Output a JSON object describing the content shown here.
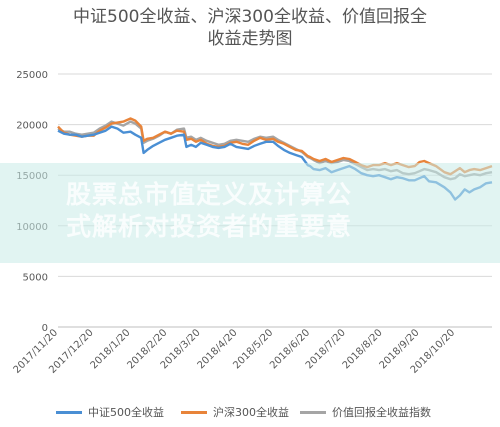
{
  "chart_data": {
    "type": "line",
    "title_line1": "中证500全收益、沪深300全收益、价值回报全",
    "title_line2": "收益走势图",
    "ylim": [
      0,
      25000
    ],
    "yticks": [
      "0",
      "5000",
      "10000",
      "15000",
      "20000",
      "25000"
    ],
    "ytick_values": [
      0,
      5000,
      10000,
      15000,
      20000,
      25000
    ],
    "x_labels": [
      "2017/11/20",
      "2017/12/20",
      "2018/1/20",
      "2018/2/20",
      "2018/3/20",
      "2018/4/20",
      "2018/5/20",
      "2018/6/20",
      "2018/7/20",
      "2018/8/20",
      "2018/9/20",
      "2018/10/20"
    ],
    "x_label_index": [
      0,
      30,
      61,
      92,
      120,
      151,
      181,
      212,
      242,
      273,
      304,
      334
    ],
    "x_total_days": 365,
    "grid": true,
    "legend_position": "bottom",
    "series": [
      {
        "name": "中证500全收益",
        "color": "#4a8fd4",
        "points": [
          [
            0,
            19400
          ],
          [
            5,
            19100
          ],
          [
            10,
            19000
          ],
          [
            15,
            19000
          ],
          [
            20,
            18800
          ],
          [
            25,
            18900
          ],
          [
            30,
            19000
          ],
          [
            35,
            19200
          ],
          [
            40,
            19400
          ],
          [
            45,
            19800
          ],
          [
            50,
            19600
          ],
          [
            55,
            19200
          ],
          [
            61,
            19300
          ],
          [
            65,
            19000
          ],
          [
            70,
            18700
          ],
          [
            72,
            17200
          ],
          [
            75,
            17500
          ],
          [
            80,
            17900
          ],
          [
            85,
            18200
          ],
          [
            90,
            18500
          ],
          [
            95,
            18700
          ],
          [
            100,
            18900
          ],
          [
            106,
            19000
          ],
          [
            108,
            17800
          ],
          [
            112,
            18000
          ],
          [
            116,
            17800
          ],
          [
            120,
            18200
          ],
          [
            125,
            18000
          ],
          [
            130,
            17800
          ],
          [
            135,
            17700
          ],
          [
            140,
            17800
          ],
          [
            145,
            18100
          ],
          [
            150,
            17800
          ],
          [
            155,
            17700
          ],
          [
            160,
            17600
          ],
          [
            165,
            17900
          ],
          [
            170,
            18100
          ],
          [
            175,
            18300
          ],
          [
            181,
            18300
          ],
          [
            185,
            17900
          ],
          [
            190,
            17500
          ],
          [
            195,
            17200
          ],
          [
            200,
            17000
          ],
          [
            205,
            16800
          ],
          [
            210,
            16000
          ],
          [
            212,
            15900
          ],
          [
            215,
            15600
          ],
          [
            220,
            15500
          ],
          [
            225,
            15700
          ],
          [
            230,
            15300
          ],
          [
            235,
            15500
          ],
          [
            240,
            15700
          ],
          [
            245,
            15900
          ],
          [
            250,
            15600
          ],
          [
            255,
            15200
          ],
          [
            260,
            15000
          ],
          [
            265,
            14900
          ],
          [
            270,
            15000
          ],
          [
            275,
            14800
          ],
          [
            280,
            14600
          ],
          [
            285,
            14800
          ],
          [
            290,
            14700
          ],
          [
            295,
            14500
          ],
          [
            300,
            14500
          ],
          [
            304,
            14700
          ],
          [
            308,
            14900
          ],
          [
            312,
            14400
          ],
          [
            318,
            14300
          ],
          [
            325,
            13800
          ],
          [
            330,
            13300
          ],
          [
            334,
            12600
          ],
          [
            338,
            13000
          ],
          [
            342,
            13600
          ],
          [
            346,
            13300
          ],
          [
            350,
            13600
          ],
          [
            355,
            13800
          ],
          [
            360,
            14200
          ],
          [
            365,
            14300
          ]
        ]
      },
      {
        "name": "沪深300全收益",
        "color": "#e8843a",
        "points": [
          [
            0,
            19800
          ],
          [
            5,
            19200
          ],
          [
            10,
            19000
          ],
          [
            15,
            18900
          ],
          [
            20,
            18800
          ],
          [
            25,
            18900
          ],
          [
            30,
            18900
          ],
          [
            35,
            19400
          ],
          [
            40,
            19700
          ],
          [
            45,
            20100
          ],
          [
            50,
            20200
          ],
          [
            55,
            20300
          ],
          [
            61,
            20600
          ],
          [
            65,
            20400
          ],
          [
            70,
            19800
          ],
          [
            72,
            18400
          ],
          [
            75,
            18600
          ],
          [
            80,
            18700
          ],
          [
            85,
            19000
          ],
          [
            90,
            19300
          ],
          [
            95,
            19100
          ],
          [
            100,
            19400
          ],
          [
            106,
            19300
          ],
          [
            108,
            18500
          ],
          [
            112,
            18600
          ],
          [
            116,
            18300
          ],
          [
            120,
            18500
          ],
          [
            125,
            18100
          ],
          [
            130,
            17900
          ],
          [
            135,
            17800
          ],
          [
            140,
            17900
          ],
          [
            145,
            18200
          ],
          [
            150,
            18300
          ],
          [
            155,
            18100
          ],
          [
            160,
            18000
          ],
          [
            165,
            18400
          ],
          [
            170,
            18700
          ],
          [
            175,
            18500
          ],
          [
            181,
            18600
          ],
          [
            185,
            18300
          ],
          [
            190,
            18100
          ],
          [
            195,
            17800
          ],
          [
            200,
            17500
          ],
          [
            205,
            17400
          ],
          [
            210,
            16900
          ],
          [
            212,
            16800
          ],
          [
            215,
            16600
          ],
          [
            220,
            16400
          ],
          [
            225,
            16600
          ],
          [
            230,
            16300
          ],
          [
            235,
            16500
          ],
          [
            240,
            16700
          ],
          [
            245,
            16600
          ],
          [
            250,
            16300
          ],
          [
            255,
            16000
          ],
          [
            260,
            15800
          ],
          [
            265,
            16000
          ],
          [
            270,
            16000
          ],
          [
            275,
            16200
          ],
          [
            280,
            16000
          ],
          [
            285,
            16200
          ],
          [
            290,
            16000
          ],
          [
            295,
            15800
          ],
          [
            300,
            15900
          ],
          [
            304,
            16300
          ],
          [
            308,
            16400
          ],
          [
            312,
            16200
          ],
          [
            318,
            15900
          ],
          [
            325,
            15300
          ],
          [
            330,
            15100
          ],
          [
            334,
            15400
          ],
          [
            338,
            15700
          ],
          [
            342,
            15300
          ],
          [
            346,
            15500
          ],
          [
            350,
            15600
          ],
          [
            355,
            15500
          ],
          [
            360,
            15700
          ],
          [
            365,
            15900
          ]
        ]
      },
      {
        "name": "价值回报全收益指数",
        "color": "#a5a5a5",
        "points": [
          [
            0,
            19600
          ],
          [
            5,
            19300
          ],
          [
            10,
            19300
          ],
          [
            15,
            19100
          ],
          [
            20,
            19000
          ],
          [
            25,
            19100
          ],
          [
            30,
            19200
          ],
          [
            35,
            19600
          ],
          [
            40,
            19900
          ],
          [
            45,
            20300
          ],
          [
            50,
            20100
          ],
          [
            55,
            19900
          ],
          [
            61,
            20300
          ],
          [
            65,
            20100
          ],
          [
            70,
            19600
          ],
          [
            72,
            18200
          ],
          [
            75,
            18400
          ],
          [
            80,
            18600
          ],
          [
            85,
            18900
          ],
          [
            90,
            19300
          ],
          [
            95,
            19100
          ],
          [
            100,
            19500
          ],
          [
            106,
            19600
          ],
          [
            108,
            18700
          ],
          [
            112,
            18800
          ],
          [
            116,
            18500
          ],
          [
            120,
            18700
          ],
          [
            125,
            18400
          ],
          [
            130,
            18200
          ],
          [
            135,
            18000
          ],
          [
            140,
            18100
          ],
          [
            145,
            18400
          ],
          [
            150,
            18500
          ],
          [
            155,
            18400
          ],
          [
            160,
            18300
          ],
          [
            165,
            18600
          ],
          [
            170,
            18800
          ],
          [
            175,
            18700
          ],
          [
            181,
            18800
          ],
          [
            185,
            18500
          ],
          [
            190,
            18200
          ],
          [
            195,
            17900
          ],
          [
            200,
            17600
          ],
          [
            205,
            17300
          ],
          [
            210,
            16800
          ],
          [
            212,
            16700
          ],
          [
            215,
            16500
          ],
          [
            220,
            16200
          ],
          [
            225,
            16400
          ],
          [
            230,
            16200
          ],
          [
            235,
            16300
          ],
          [
            240,
            16500
          ],
          [
            245,
            16400
          ],
          [
            250,
            16100
          ],
          [
            255,
            15800
          ],
          [
            260,
            15500
          ],
          [
            265,
            15600
          ],
          [
            270,
            15500
          ],
          [
            275,
            15600
          ],
          [
            280,
            15400
          ],
          [
            285,
            15500
          ],
          [
            290,
            15200
          ],
          [
            295,
            15100
          ],
          [
            300,
            15200
          ],
          [
            304,
            15400
          ],
          [
            308,
            15600
          ],
          [
            312,
            15500
          ],
          [
            318,
            15300
          ],
          [
            325,
            14800
          ],
          [
            330,
            14600
          ],
          [
            334,
            14700
          ],
          [
            338,
            15100
          ],
          [
            342,
            14900
          ],
          [
            346,
            15000
          ],
          [
            350,
            15100
          ],
          [
            355,
            15000
          ],
          [
            360,
            15200
          ],
          [
            365,
            15300
          ]
        ]
      }
    ]
  },
  "watermark": {
    "line1": "股票总市值定义及计算公",
    "line2": "式解析对投资者的重要意"
  }
}
